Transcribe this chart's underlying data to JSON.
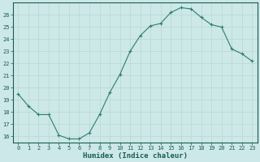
{
  "x": [
    0,
    1,
    2,
    3,
    4,
    5,
    6,
    7,
    8,
    9,
    10,
    11,
    12,
    13,
    14,
    15,
    16,
    17,
    18,
    19,
    20,
    21,
    22,
    23
  ],
  "y": [
    19.5,
    18.5,
    17.8,
    17.8,
    16.1,
    15.8,
    15.8,
    16.3,
    17.8,
    19.6,
    21.1,
    23.0,
    24.3,
    25.1,
    25.3,
    26.2,
    26.6,
    26.5,
    25.8,
    25.2,
    25.0,
    23.2,
    22.8,
    22.2
  ],
  "xlim": [
    -0.5,
    23.5
  ],
  "ylim": [
    15.5,
    27.0
  ],
  "yticks": [
    16,
    17,
    18,
    19,
    20,
    21,
    22,
    23,
    24,
    25,
    26
  ],
  "xticks": [
    0,
    1,
    2,
    3,
    4,
    5,
    6,
    7,
    8,
    9,
    10,
    11,
    12,
    13,
    14,
    15,
    16,
    17,
    18,
    19,
    20,
    21,
    22,
    23
  ],
  "xlabel": "Humidex (Indice chaleur)",
  "line_color": "#2e7d6e",
  "marker": "+",
  "bg_color": "#cce8e8",
  "grid_color": "#b8d8d0",
  "axis_color": "#1a5c52",
  "tick_fontsize": 5.0,
  "label_fontsize": 6.5
}
